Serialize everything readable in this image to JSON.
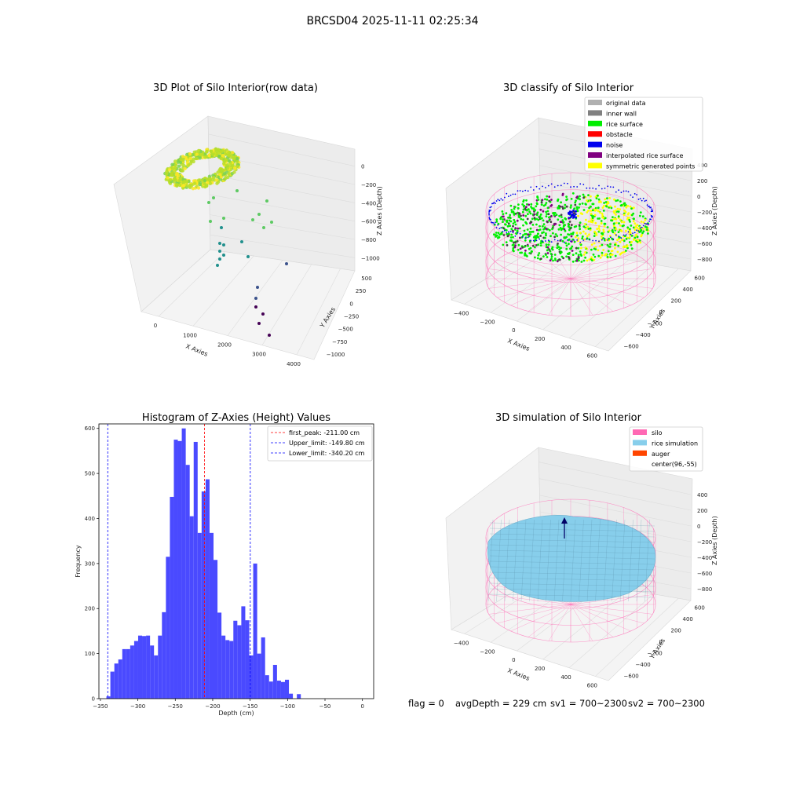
{
  "suptitle": "BRCSD04 2025-11-11 02:25:34",
  "footer": {
    "flag": "flag = 0",
    "avg_depth": "avgDepth = 229 cm",
    "sv1": "sv1 = 700~2300",
    "sv2": "sv2 = 700~2300"
  },
  "chart_data": [
    {
      "type": "scatter3d",
      "title": "3D Plot of Silo Interior(row data)",
      "xlabel": "X Axies",
      "ylabel": "Y Axies",
      "zlabel": "Z Axies (Depth)",
      "x_ticks": [
        "0",
        "1000",
        "2000",
        "3000",
        "4000"
      ],
      "y_ticks": [
        "500",
        "250",
        "0",
        "−250",
        "−500",
        "−750",
        "−1000"
      ],
      "z_ticks": [
        "0",
        "−200",
        "−400",
        "−600",
        "−800",
        "−1000"
      ],
      "colormap": "viridis"
    },
    {
      "type": "scatter3d",
      "title": "3D classify of Silo Interior",
      "xlabel": "X Axies",
      "ylabel": "Y Axies",
      "zlabel": "Z Axies (Depth)",
      "x_ticks": [
        "−400",
        "−200",
        "0",
        "200",
        "400",
        "600"
      ],
      "y_ticks": [
        "600",
        "400",
        "200",
        "0",
        "−200",
        "−400",
        "−600"
      ],
      "z_ticks": [
        "400",
        "200",
        "0",
        "−200",
        "−400",
        "−600",
        "−800"
      ],
      "legend": [
        {
          "label": "original data",
          "color": "#b0b0b0"
        },
        {
          "label": "inner wall",
          "color": "#808080"
        },
        {
          "label": "rice surface",
          "color": "#00ee00"
        },
        {
          "label": "obstacle",
          "color": "#ff0000"
        },
        {
          "label": "noise",
          "color": "#0000ee"
        },
        {
          "label": "interpolated rice surface",
          "color": "#800080"
        },
        {
          "label": "symmetric generated points",
          "color": "#ffff00"
        }
      ],
      "legend_loc": "upper right"
    },
    {
      "type": "bar",
      "title": "Histogram of Z-Axies (Height) Values",
      "xlabel": "Depth (cm)",
      "ylabel": "Frequency",
      "xlim": [
        -352,
        15
      ],
      "ylim": [
        0,
        610
      ],
      "x_ticks": [
        -350,
        -300,
        -250,
        -200,
        -150,
        -100,
        -50,
        0
      ],
      "x_tick_labels": [
        "−350",
        "−300",
        "−250",
        "−200",
        "−150",
        "−100",
        "−50",
        "0"
      ],
      "y_ticks": [
        0,
        100,
        200,
        300,
        400,
        500,
        600
      ],
      "bin_width": 5.3,
      "bins_start": -342,
      "bar_color": "#4a4aff",
      "values": [
        5,
        60,
        78,
        87,
        110,
        110,
        118,
        128,
        140,
        139,
        140,
        118,
        96,
        140,
        192,
        315,
        448,
        575,
        572,
        600,
        519,
        405,
        570,
        368,
        460,
        487,
        368,
        308,
        191,
        140,
        130,
        128,
        173,
        163,
        205,
        174,
        96,
        300,
        100,
        136,
        52,
        38,
        75,
        40,
        37,
        42,
        11,
        0,
        10
      ],
      "vlines": [
        {
          "label": "first_peak: -211.00 cm",
          "x": -211.0,
          "color": "#ff0000"
        },
        {
          "label": "Upper_limit: -149.80 cm",
          "x": -149.8,
          "color": "#0000ff"
        },
        {
          "label": "Lower_limit: -340.20 cm",
          "x": -340.2,
          "color": "#0000ff"
        }
      ],
      "legend_loc": "upper right"
    },
    {
      "type": "surface3d",
      "title": "3D simulation of Silo Interior",
      "xlabel": "X Axies",
      "ylabel": "Y Axies",
      "zlabel": "Z Axies (Depth)",
      "x_ticks": [
        "−400",
        "−200",
        "0",
        "200",
        "400",
        "600"
      ],
      "y_ticks": [
        "600",
        "400",
        "200",
        "0",
        "−200",
        "−400",
        "−600"
      ],
      "z_ticks": [
        "400",
        "200",
        "0",
        "−200",
        "−400",
        "−600",
        "−800"
      ],
      "legend": [
        {
          "label": "silo",
          "color": "#ff69b4"
        },
        {
          "label": "rice simulation",
          "color": "#87ceeb"
        },
        {
          "label": "auger",
          "color": "#ff4500"
        },
        {
          "label": "center(96,-55)",
          "color": "#ffffff"
        }
      ],
      "legend_loc": "upper right"
    }
  ]
}
